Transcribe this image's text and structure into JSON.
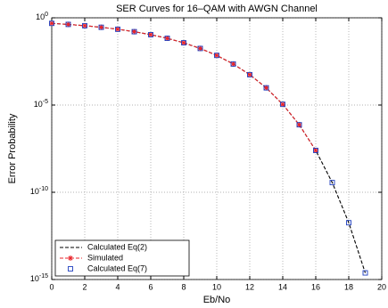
{
  "chart_data": {
    "type": "line",
    "title": "SER Curves for 16–QAM with AWGN Channel",
    "xlabel": "Eb/No",
    "ylabel": "Error Probability",
    "xlim": [
      0,
      20
    ],
    "xticks": [
      0,
      2,
      4,
      6,
      8,
      10,
      12,
      14,
      16,
      18,
      20
    ],
    "ylim": [
      1e-15,
      1
    ],
    "yscale": "log",
    "yticks": [
      {
        "value": 1e-15,
        "label": "10^-15"
      },
      {
        "value": 1e-10,
        "label": "10^-10"
      },
      {
        "value": 1e-05,
        "label": "10^-5"
      },
      {
        "value": 1,
        "label": "10^0"
      }
    ],
    "grid": true,
    "legend": "lower left",
    "series": [
      {
        "name": "Calculated Eq(2)",
        "color": "#000000",
        "line": "dashed",
        "marker": "none",
        "x": [
          0,
          1,
          2,
          3,
          4,
          5,
          6,
          7,
          8,
          9,
          10,
          11,
          12,
          13,
          14,
          15,
          16,
          17,
          18,
          19
        ],
        "values": [
          0.48,
          0.418,
          0.352,
          0.286,
          0.221,
          0.16,
          0.108,
          0.0667,
          0.0369,
          0.0175,
          0.00701,
          0.00225,
          0.00055,
          9.7e-05,
          1.1e-05,
          7.4e-07,
          2.5e-08,
          3.6e-10,
          1.8e-12,
          2.4e-15
        ]
      },
      {
        "name": "Simulated",
        "color": "#e8232a",
        "line": "dashed",
        "marker": "star",
        "x": [
          0,
          1,
          2,
          3,
          4,
          5,
          6,
          7,
          8,
          9,
          10,
          11,
          12,
          13,
          14,
          15,
          16
        ],
        "values": [
          0.48,
          0.418,
          0.352,
          0.286,
          0.221,
          0.16,
          0.108,
          0.0667,
          0.0369,
          0.0175,
          0.00701,
          0.00225,
          0.00055,
          9.7e-05,
          1.1e-05,
          7.4e-07,
          2.5e-08
        ]
      },
      {
        "name": "Calculated Eq(7)",
        "color": "#1f3fbf",
        "line": "none",
        "marker": "square",
        "x": [
          0,
          1,
          2,
          3,
          4,
          5,
          6,
          7,
          8,
          9,
          10,
          11,
          12,
          13,
          14,
          15,
          16,
          17,
          18,
          19
        ],
        "values": [
          0.48,
          0.418,
          0.352,
          0.286,
          0.221,
          0.16,
          0.108,
          0.0667,
          0.0369,
          0.0175,
          0.00701,
          0.00225,
          0.00055,
          9.7e-05,
          1.1e-05,
          7.4e-07,
          2.5e-08,
          3.6e-10,
          1.8e-12,
          2.4e-15
        ]
      }
    ]
  }
}
